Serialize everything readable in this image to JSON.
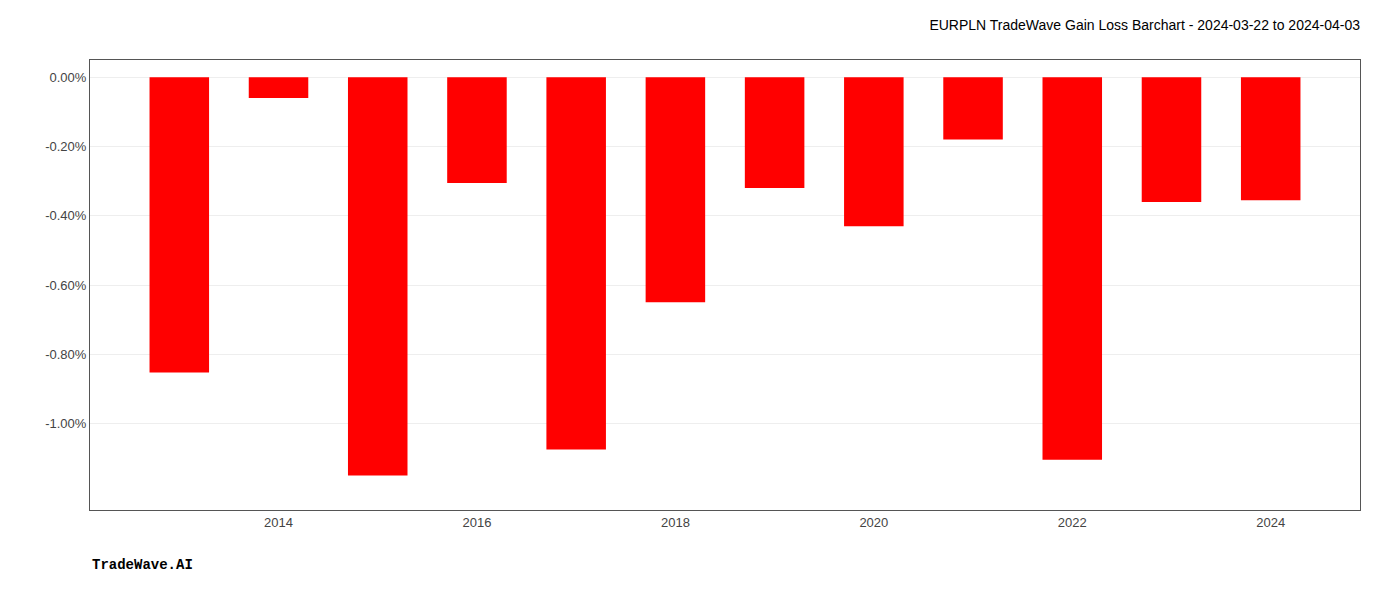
{
  "chart_data": {
    "type": "bar",
    "title": "EURPLN TradeWave Gain Loss Barchart - 2024-03-22 to 2024-04-03",
    "annotations": [
      "TradeWave.AI"
    ],
    "x": [
      2013,
      2014,
      2015,
      2016,
      2017,
      2018,
      2019,
      2020,
      2021,
      2022,
      2023,
      2024
    ],
    "values": [
      -0.853,
      -0.06,
      -1.15,
      -0.305,
      -1.075,
      -0.65,
      -0.32,
      -0.43,
      -0.18,
      -1.105,
      -0.36,
      -0.355
    ],
    "color": "#ff0000",
    "xlim": [
      2012.1,
      2024.9
    ],
    "xticks": [
      2014,
      2016,
      2018,
      2020,
      2022,
      2024
    ],
    "ylim": [
      -1.25,
      0.05
    ],
    "yticks": [
      {
        "value": 0.0,
        "label": "0.00%"
      },
      {
        "value": -0.2,
        "label": "-0.20%"
      },
      {
        "value": -0.4,
        "label": "-0.40%"
      },
      {
        "value": -0.6,
        "label": "-0.60%"
      },
      {
        "value": -0.8,
        "label": "-0.80%"
      },
      {
        "value": -1.0,
        "label": "-1.00%"
      }
    ],
    "grid": true
  }
}
